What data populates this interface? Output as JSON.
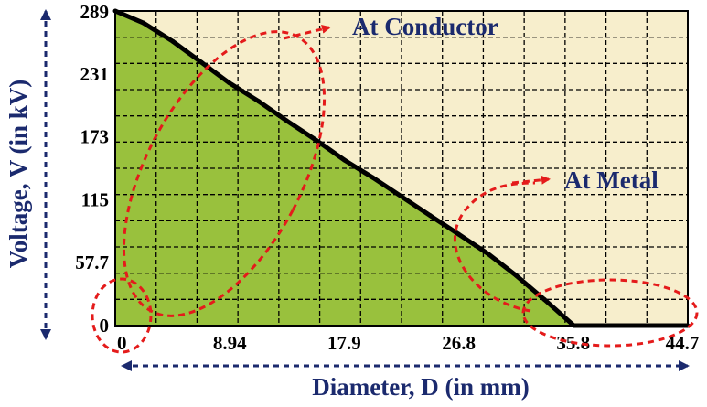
{
  "chart_data": {
    "type": "area",
    "title": "",
    "xlabel": "Diameter, D (in mm)",
    "ylabel": "Voltage, V (in kV)",
    "xlim": [
      0,
      44.7
    ],
    "ylim": [
      0,
      289
    ],
    "x_tick_labels": [
      "0",
      "8.94",
      "17.9",
      "26.8",
      "35.8",
      "44.7"
    ],
    "y_tick_labels": [
      "0",
      "57.7",
      "115",
      "173",
      "231",
      "289"
    ],
    "grid": true,
    "series": [
      {
        "x": [
          0,
          2.2,
          4.5,
          6.7,
          8.9,
          11.2,
          13.4,
          15.6,
          17.9,
          20.1,
          22.3,
          24.6,
          26.8,
          29.1,
          31.3,
          33.5,
          35.8,
          38.0,
          40.2,
          42.5,
          44.7
        ],
        "values": [
          289,
          278,
          261,
          242,
          223,
          206,
          188,
          171,
          152,
          136,
          119,
          101,
          84,
          66,
          46,
          24,
          0,
          0,
          0,
          0,
          0
        ]
      }
    ],
    "annotations": [
      "At Conductor",
      "At Metal"
    ],
    "colors": {
      "area": "#99c13d",
      "background": "#f7eecc",
      "curve": "#000000",
      "annotation": "#1b2a6e",
      "dashed": "#e41b1b"
    }
  }
}
